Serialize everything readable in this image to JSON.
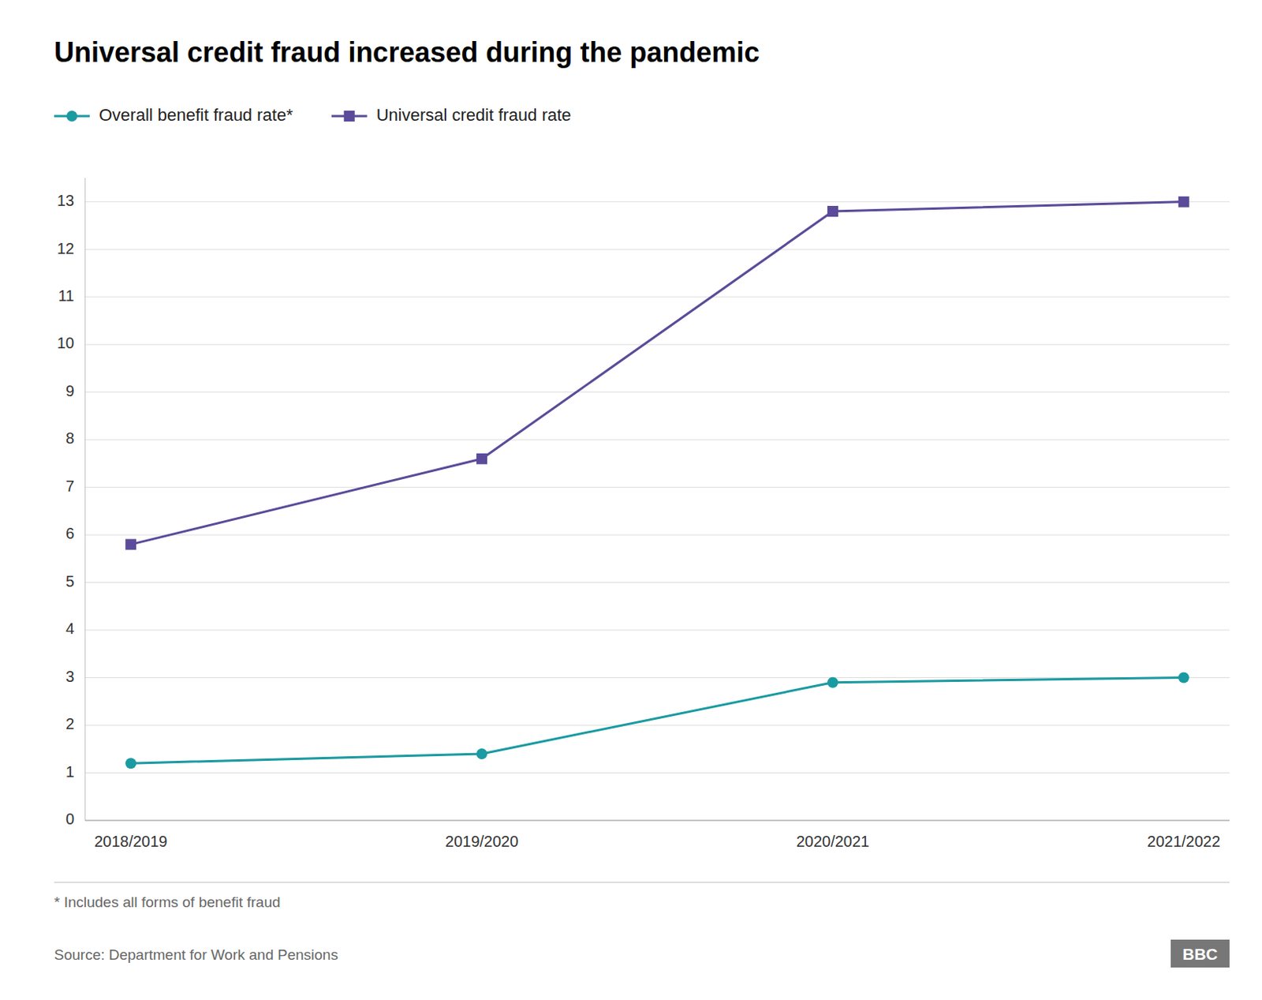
{
  "chart_data": {
    "type": "line",
    "title": "Universal credit fraud increased during the pandemic",
    "categories": [
      "2018/2019",
      "2019/2020",
      "2020/2021",
      "2021/2022"
    ],
    "series": [
      {
        "name": "Overall benefit fraud rate*",
        "color": "#1a9ba1",
        "marker": "circle",
        "values": [
          1.2,
          1.4,
          2.9,
          3.0
        ]
      },
      {
        "name": "Universal credit fraud rate",
        "color": "#5b4b99",
        "marker": "square",
        "values": [
          5.8,
          7.6,
          12.8,
          13.0
        ]
      }
    ],
    "ylim": [
      0,
      13.5
    ],
    "yticks": [
      0,
      1,
      2,
      3,
      4,
      5,
      6,
      7,
      8,
      9,
      10,
      11,
      12,
      13
    ],
    "grid": true,
    "legend": "top-left",
    "footnote": "* Includes all forms of benefit fraud",
    "source": "Source: Department for Work and Pensions",
    "badge": "BBC"
  }
}
